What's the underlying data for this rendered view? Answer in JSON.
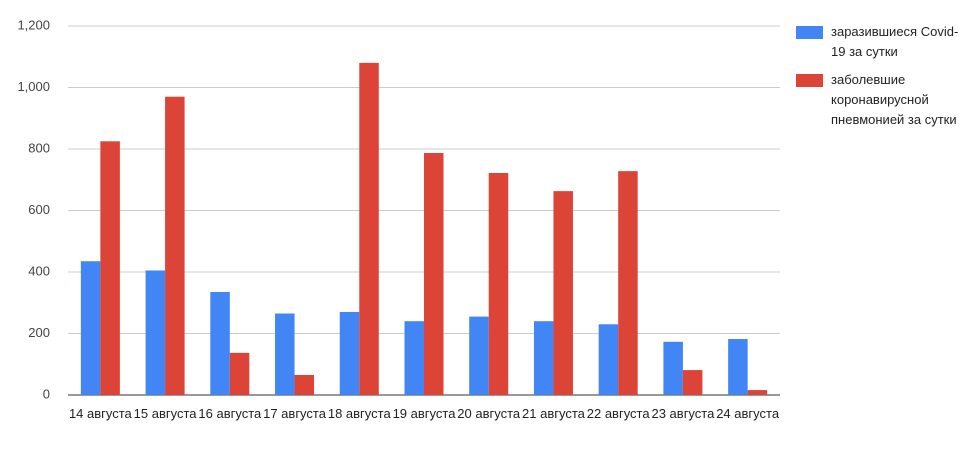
{
  "chart_data": {
    "type": "bar",
    "categories": [
      "14 августа",
      "15 августа",
      "16 августа",
      "17 августа",
      "18 августа",
      "19 августа",
      "20 августа",
      "21 августа",
      "22 августа",
      "23 августа",
      "24 августа"
    ],
    "series": [
      {
        "name": "заразившиеся Covid-19 за сутки",
        "color": "#4285f4",
        "values": [
          435,
          405,
          335,
          265,
          270,
          240,
          255,
          240,
          230,
          173,
          182
        ]
      },
      {
        "name": "заболевшие коронавирусной пневмонией за сутки",
        "color": "#db4437",
        "values": [
          825,
          970,
          137,
          65,
          1080,
          787,
          722,
          663,
          728,
          81,
          16
        ]
      }
    ],
    "ylim": [
      0,
      1200
    ],
    "yticks": [
      0,
      200,
      400,
      600,
      800,
      {
        "value": 1000,
        "label": "1,000"
      },
      {
        "value": 1200,
        "label": "1,200"
      }
    ],
    "grid": true,
    "legend": "right"
  }
}
